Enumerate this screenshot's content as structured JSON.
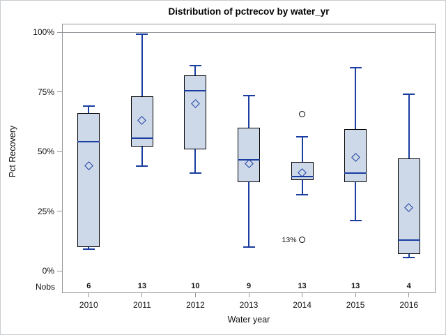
{
  "chart_data": {
    "type": "box",
    "title": "Distribution of pctrecov by water_yr",
    "xlabel": "Water year",
    "ylabel": "Pct Recovery",
    "nobs_label": "Nobs",
    "ylim": [
      0,
      100
    ],
    "y_ticks": [
      {
        "label": "100%",
        "value": 100
      },
      {
        "label": "75%",
        "value": 75
      },
      {
        "label": "50%",
        "value": 50
      },
      {
        "label": "25%",
        "value": 25
      },
      {
        "label": "0%",
        "value": 0
      }
    ],
    "reference_line": 100,
    "grid": "off",
    "legend": "none",
    "categories": [
      "2010",
      "2011",
      "2012",
      "2013",
      "2014",
      "2015",
      "2016"
    ],
    "boxes": [
      {
        "category": "2010",
        "nobs": "6",
        "min": 9,
        "q1": 10,
        "median": 54,
        "q3": 66,
        "max": 69,
        "mean": 44,
        "outliers": []
      },
      {
        "category": "2011",
        "nobs": "13",
        "min": 44,
        "q1": 52,
        "median": 55.5,
        "q3": 73,
        "max": 99,
        "mean": 63,
        "outliers": []
      },
      {
        "category": "2012",
        "nobs": "10",
        "min": 41,
        "q1": 51,
        "median": 75.5,
        "q3": 82,
        "max": 86,
        "mean": 70,
        "outliers": []
      },
      {
        "category": "2013",
        "nobs": "9",
        "min": 10,
        "q1": 37,
        "median": 46.5,
        "q3": 60,
        "max": 73.5,
        "mean": 45,
        "outliers": []
      },
      {
        "category": "2014",
        "nobs": "13",
        "min": 32,
        "q1": 38,
        "median": 39.5,
        "q3": 45.5,
        "max": 56,
        "mean": 41,
        "outliers": [
          {
            "value": 65.5,
            "label": ""
          },
          {
            "value": 13,
            "label": "13%"
          }
        ]
      },
      {
        "category": "2015",
        "nobs": "13",
        "min": 21,
        "q1": 37,
        "median": 41,
        "q3": 59.5,
        "max": 85,
        "mean": 47.5,
        "outliers": []
      },
      {
        "category": "2016",
        "nobs": "4",
        "min": 5.5,
        "q1": 7,
        "median": 13,
        "q3": 47,
        "max": 74,
        "mean": 26.5,
        "outliers": []
      }
    ],
    "colors": {
      "box_fill": "#cdd8e9",
      "line_blue": "#1a3ea0",
      "box_border": "#000000",
      "frame_gray": "#919599",
      "text": "#111111",
      "background": "#ffffff"
    }
  }
}
